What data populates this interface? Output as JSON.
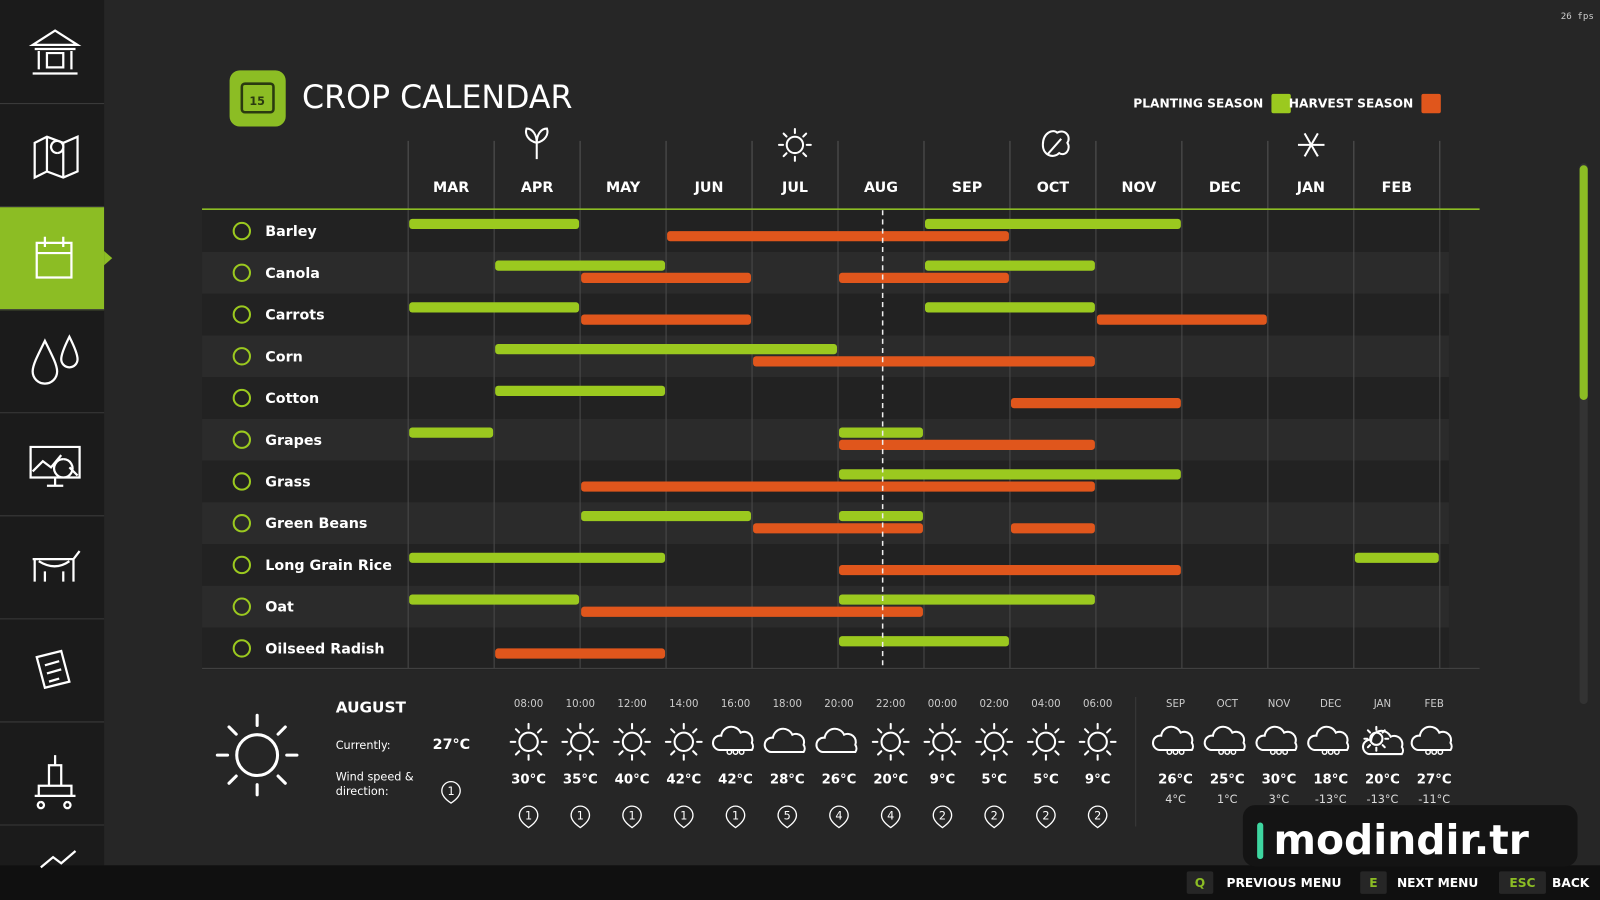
{
  "fps": "26 fps",
  "header": {
    "title": "CROP CALENDAR",
    "legend": {
      "planting": "PLANTING SEASON",
      "harvest": "HARVEST SEASON"
    }
  },
  "months": [
    "MAR",
    "APR",
    "MAY",
    "JUN",
    "JUL",
    "AUG",
    "SEP",
    "OCT",
    "NOV",
    "DEC",
    "JAN",
    "FEB"
  ],
  "crops": [
    {
      "name": "Barley",
      "planting": [
        {
          "from": "MAR",
          "to": "APR"
        },
        {
          "from": "SEP",
          "to": "NOV"
        }
      ],
      "harvest": [
        {
          "from": "JUN",
          "to": "SEP"
        }
      ]
    },
    {
      "name": "Canola",
      "planting": [
        {
          "from": "APR",
          "to": "MAY"
        },
        {
          "from": "SEP",
          "to": "OCT"
        }
      ],
      "harvest": [
        {
          "from": "MAY",
          "to": "JUN"
        },
        {
          "from": "AUG",
          "to": "SEP"
        }
      ]
    },
    {
      "name": "Carrots",
      "planting": [
        {
          "from": "MAR",
          "to": "APR"
        },
        {
          "from": "SEP",
          "to": "OCT"
        }
      ],
      "harvest": [
        {
          "from": "MAY",
          "to": "JUN"
        },
        {
          "from": "NOV",
          "to": "DEC"
        }
      ]
    },
    {
      "name": "Corn",
      "planting": [
        {
          "from": "APR",
          "to": "JUL"
        }
      ],
      "harvest": [
        {
          "from": "JUL",
          "to": "OCT"
        }
      ]
    },
    {
      "name": "Cotton",
      "planting": [
        {
          "from": "APR",
          "to": "MAY"
        }
      ],
      "harvest": [
        {
          "from": "OCT",
          "to": "NOV"
        }
      ]
    },
    {
      "name": "Grapes",
      "planting": [
        {
          "from": "MAR",
          "to": "MAR"
        },
        {
          "from": "AUG",
          "to": "AUG"
        }
      ],
      "harvest": [
        {
          "from": "AUG",
          "to": "OCT"
        }
      ]
    },
    {
      "name": "Grass",
      "planting": [
        {
          "from": "AUG",
          "to": "NOV"
        }
      ],
      "harvest": [
        {
          "from": "MAY",
          "to": "OCT"
        }
      ]
    },
    {
      "name": "Green Beans",
      "planting": [
        {
          "from": "MAY",
          "to": "JUN"
        },
        {
          "from": "AUG",
          "to": "AUG"
        }
      ],
      "harvest": [
        {
          "from": "JUL",
          "to": "AUG"
        },
        {
          "from": "OCT",
          "to": "OCT"
        }
      ]
    },
    {
      "name": "Long Grain Rice",
      "planting": [
        {
          "from": "MAR",
          "to": "MAY"
        },
        {
          "from": "FEB",
          "to": "FEB"
        }
      ],
      "harvest": [
        {
          "from": "AUG",
          "to": "NOV"
        }
      ]
    },
    {
      "name": "Oat",
      "planting": [
        {
          "from": "MAR",
          "to": "APR"
        },
        {
          "from": "AUG",
          "to": "OCT"
        }
      ],
      "harvest": [
        {
          "from": "MAY",
          "to": "AUG"
        }
      ]
    },
    {
      "name": "Oilseed Radish",
      "planting": [
        {
          "from": "AUG",
          "to": "SEP"
        }
      ],
      "harvest": [
        {
          "from": "APR",
          "to": "MAY"
        }
      ]
    }
  ],
  "weather": {
    "month": "AUGUST",
    "current_label": "Currently:",
    "current": "27°C",
    "wind_label": [
      "Wind speed &",
      "direction:"
    ],
    "current_wind": 1,
    "hourly": [
      {
        "time": "08:00",
        "temp": "30°C",
        "wind": 1
      },
      {
        "time": "10:00",
        "temp": "35°C",
        "wind": 1
      },
      {
        "time": "12:00",
        "temp": "40°C",
        "wind": 1
      },
      {
        "time": "14:00",
        "temp": "42°C",
        "wind": 1
      },
      {
        "time": "16:00",
        "temp": "42°C",
        "wind": 1
      },
      {
        "time": "18:00",
        "temp": "28°C",
        "wind": 5
      },
      {
        "time": "20:00",
        "temp": "26°C",
        "wind": 4
      },
      {
        "time": "22:00",
        "temp": "20°C",
        "wind": 4
      },
      {
        "time": "00:00",
        "temp": "9°C",
        "wind": 2
      },
      {
        "time": "02:00",
        "temp": "5°C",
        "wind": 2
      },
      {
        "time": "04:00",
        "temp": "5°C",
        "wind": 2
      },
      {
        "time": "06:00",
        "temp": "9°C",
        "wind": 2
      }
    ],
    "monthly": [
      {
        "month": "SEP",
        "high": "26°C",
        "low": "4°C"
      },
      {
        "month": "OCT",
        "high": "25°C",
        "low": "1°C"
      },
      {
        "month": "NOV",
        "high": "30°C",
        "low": "3°C"
      },
      {
        "month": "DEC",
        "high": "18°C",
        "low": "-13°C"
      },
      {
        "month": "JAN",
        "high": "20°C",
        "low": "-13°C"
      },
      {
        "month": "FEB",
        "high": "27°C",
        "low": "-11°C"
      }
    ]
  },
  "footer": [
    {
      "key": "Q",
      "label": "PREVIOUS MENU"
    },
    {
      "key": "E",
      "label": "NEXT MENU"
    },
    {
      "key": "ESC",
      "label": "BACK"
    }
  ],
  "watermark": "modindir.tr"
}
